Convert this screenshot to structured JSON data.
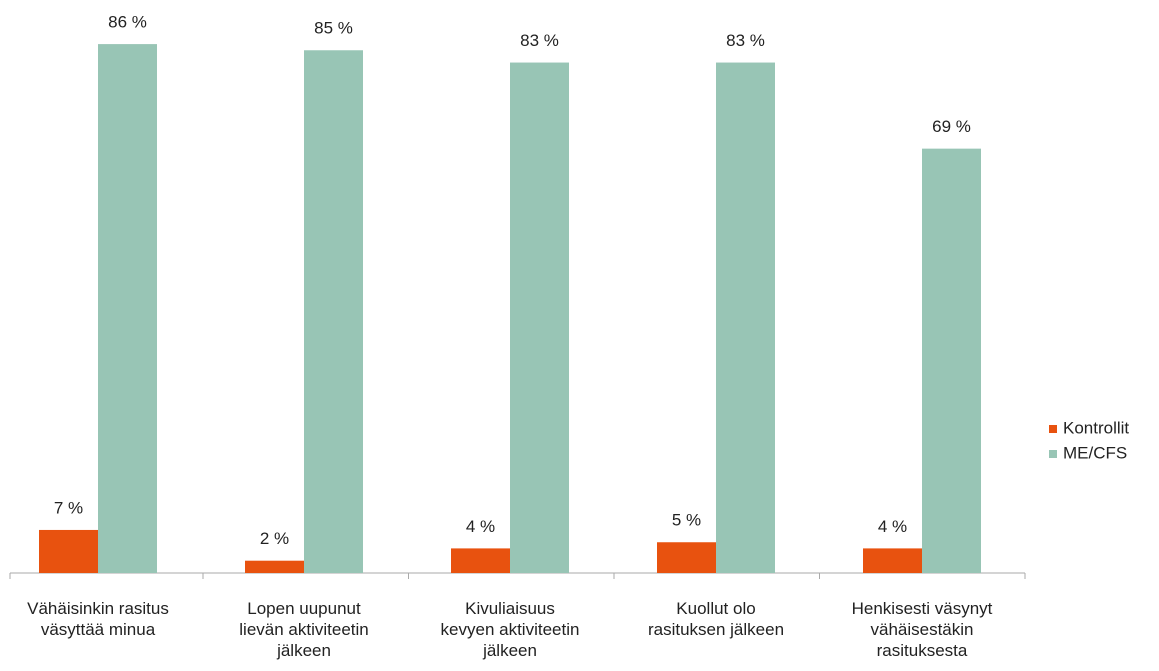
{
  "chart_data": {
    "type": "bar",
    "categories": [
      "Vähäisinkin rasitus\nväsyttää minua",
      "Lopen uupunut\nlievän aktiviteetin\njälkeen",
      "Kivuliaisuus\nkevyen aktiviteetin\njälkeen",
      "Kuollut olo\nrasituksen jälkeen",
      "Henkisesti väsynyt\nvähäisestäkin\nrasituksesta"
    ],
    "series": [
      {
        "name": "Kontrollit",
        "color": "#e8520f",
        "values": [
          7,
          2,
          4,
          5,
          4
        ],
        "value_labels": [
          "7 %",
          "2 %",
          "4 %",
          "5 %",
          "4 %"
        ]
      },
      {
        "name": "ME/CFS",
        "color": "#98c5b5",
        "values": [
          86,
          85,
          83,
          83,
          69
        ],
        "value_labels": [
          "86 %",
          "85 %",
          "83 %",
          "83 %",
          "69 %"
        ]
      }
    ],
    "legend": "right"
  }
}
